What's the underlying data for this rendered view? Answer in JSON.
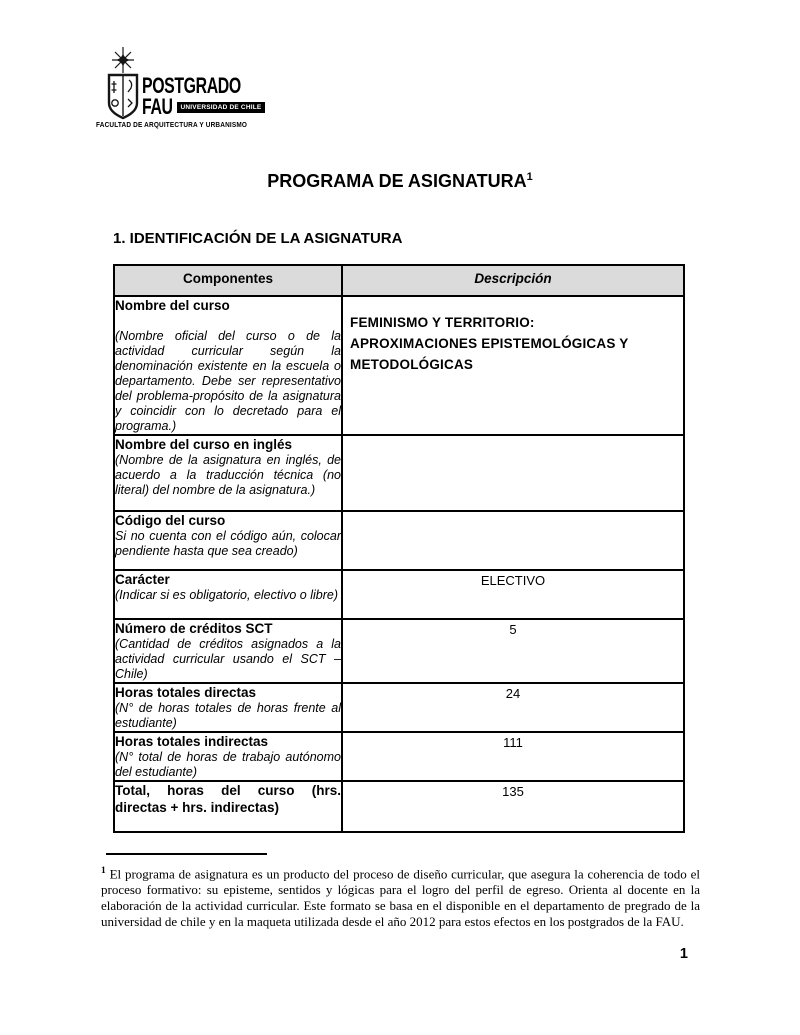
{
  "logo": {
    "title_line1": "POSTGRADO",
    "title_line2": "FAU",
    "badge": "UNIVERSIDAD DE CHILE",
    "faculty": "FACULTAD DE ARQUITECTURA Y URBANISMO"
  },
  "document": {
    "title": "PROGRAMA DE ASIGNATURA",
    "title_footnote_ref": "1",
    "section_heading": "1. IDENTIFICACIÓN DE LA ASIGNATURA"
  },
  "table": {
    "header": {
      "components": "Componentes",
      "description": "Descripción"
    },
    "rows": [
      {
        "title": "Nombre del curso",
        "gap_after_title": true,
        "note": "(Nombre oficial del curso o de la actividad curricular según la denominación existente en la escuela o departamento. Debe ser representativo del problema-propósito de la asignatura y coincidir con lo decretado para el programa.)",
        "value_lines": [
          "FEMINISMO Y TERRITORIO:",
          "APROXIMACIONES EPISTEMOLÓGICAS Y",
          "METODOLÓGICAS"
        ]
      },
      {
        "title": "Nombre del curso en inglés",
        "note": "(Nombre de la asignatura en inglés, de acuerdo a la traducción técnica (no literal) del nombre de la asignatura.)",
        "value": ""
      },
      {
        "title": "Código del curso",
        "note": "Si no cuenta con el código aún, colocar pendiente hasta que sea creado)",
        "value": ""
      },
      {
        "title": "Carácter",
        "note": "(Indicar si es obligatorio, electivo o libre)",
        "value": "ELECTIVO"
      },
      {
        "title": "Número de créditos SCT",
        "note": "(Cantidad de créditos asignados a la actividad curricular usando el SCT – Chile)",
        "value": "5"
      },
      {
        "title": "Horas totales directas",
        "note": "(N° de horas totales de horas frente al estudiante)",
        "value": "24"
      },
      {
        "title": "Horas totales indirectas",
        "note": "(N° total de horas de trabajo autónomo del estudiante)",
        "value": "111"
      },
      {
        "title": "Total, horas del curso (hrs. directas + hrs. indirectas)",
        "note": "",
        "value": "135"
      }
    ]
  },
  "footnote": {
    "marker": "1",
    "text": "El programa de asignatura es un producto del proceso de diseño curricular, que asegura la coherencia de todo el proceso formativo: su episteme, sentidos y lógicas para el logro del perfil de egreso. Orienta al docente en la elaboración de la actividad curricular. Este formato se basa en el disponible en el departamento de pregrado de la universidad de chile y en la maqueta utilizada desde el año 2012 para estos efectos en los postgrados de la FAU."
  },
  "page": {
    "number": "1"
  },
  "colors": {
    "header_bg": "#DBDBDB",
    "border": "#000000"
  }
}
